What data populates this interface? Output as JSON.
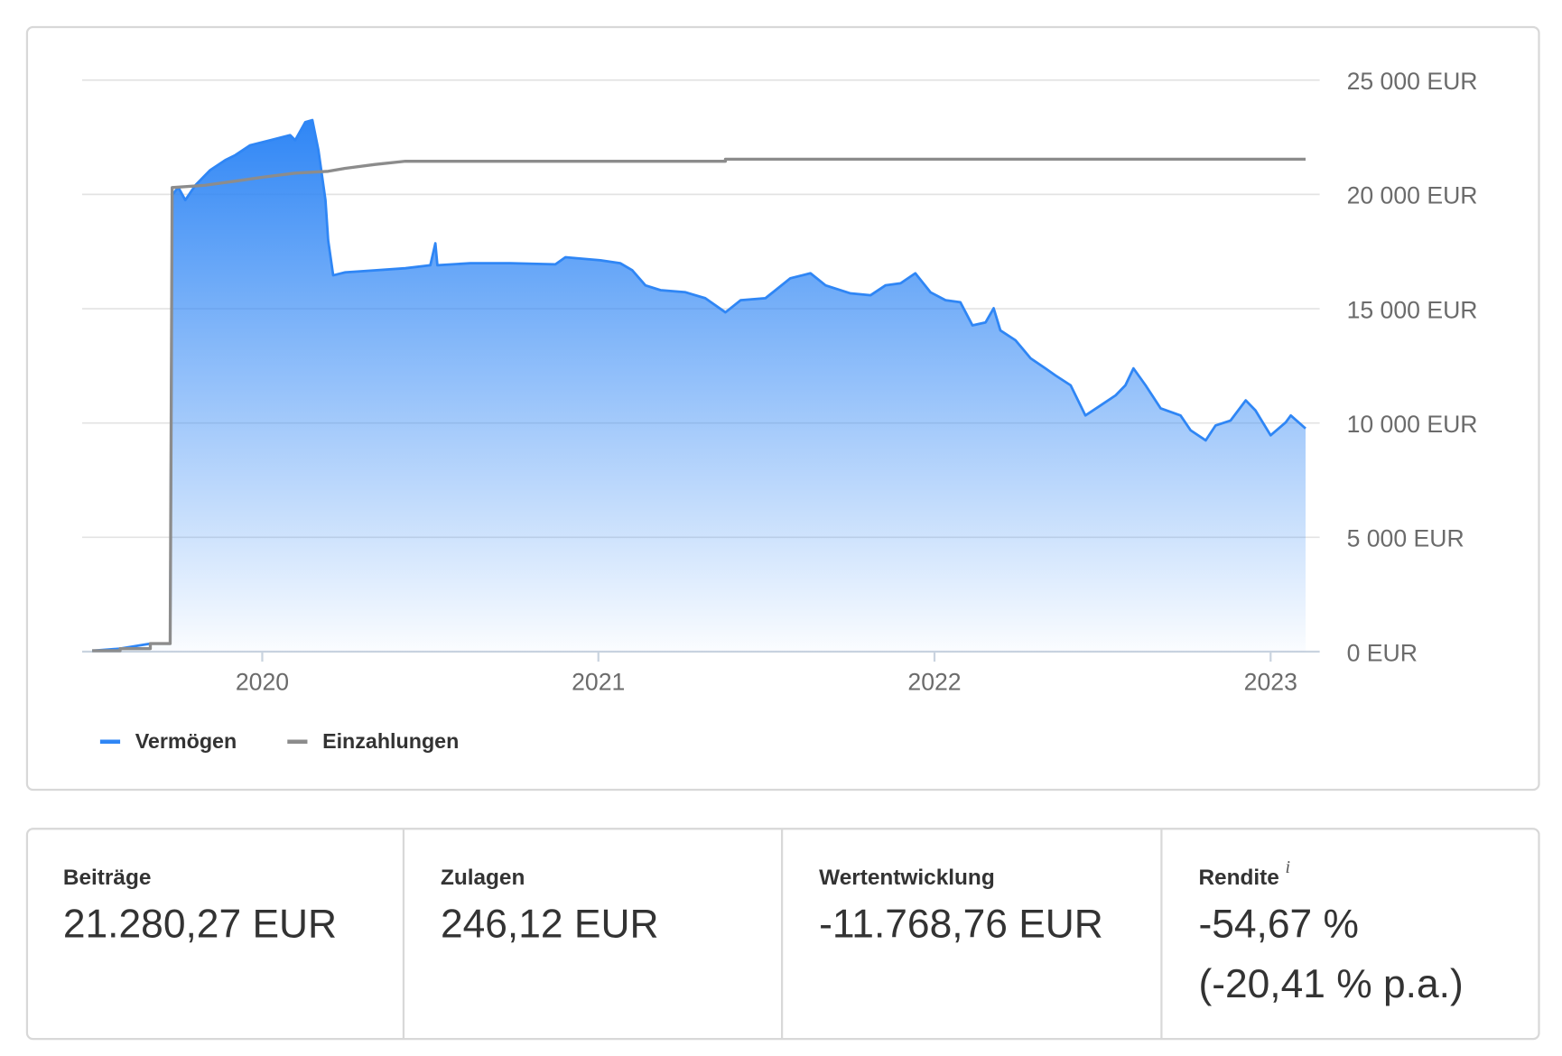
{
  "chart_data": {
    "type": "area-line",
    "xlim": [
      2019.464,
      2023.146
    ],
    "xticks": [
      2020,
      2021,
      2022,
      2023
    ],
    "ylim": [
      0,
      25000
    ],
    "yticks": [
      {
        "value": 0,
        "label": "0 EUR"
      },
      {
        "value": 5000,
        "label": "5 000 EUR"
      },
      {
        "value": 10000,
        "label": "10 000 EUR"
      },
      {
        "value": 15000,
        "label": "15 000 EUR"
      },
      {
        "value": 20000,
        "label": "20 000 EUR"
      },
      {
        "value": 25000,
        "label": "25 000 EUR"
      }
    ],
    "grid": true,
    "legend": "bottom-left",
    "series": [
      {
        "name": "Vermögen",
        "color": "#2f86f5",
        "fill": "gradient",
        "x": [
          2019.494,
          2019.577,
          2019.667,
          2019.726,
          2019.732,
          2019.75,
          2019.771,
          2019.801,
          2019.845,
          2019.89,
          2019.92,
          2019.964,
          2020.024,
          2020.083,
          2020.098,
          2020.128,
          2020.149,
          2020.167,
          2020.188,
          2020.196,
          2020.211,
          2020.247,
          2020.336,
          2020.426,
          2020.5,
          2020.515,
          2020.521,
          2020.619,
          2020.738,
          2020.872,
          2020.902,
          2020.932,
          2021.006,
          2021.065,
          2021.101,
          2021.14,
          2021.185,
          2021.259,
          2021.318,
          2021.378,
          2021.423,
          2021.497,
          2021.527,
          2021.571,
          2021.631,
          2021.676,
          2021.75,
          2021.81,
          2021.854,
          2021.899,
          2021.943,
          2021.988,
          2022.033,
          2022.077,
          2022.113,
          2022.152,
          2022.176,
          2022.196,
          2022.241,
          2022.286,
          2022.33,
          2022.36,
          2022.405,
          2022.449,
          2022.494,
          2022.539,
          2022.568,
          2022.592,
          2022.628,
          2022.673,
          2022.732,
          2022.762,
          2022.807,
          2022.836,
          2022.881,
          2022.926,
          2022.955,
          2023.0,
          2023.045,
          2023.06,
          2023.104
        ],
        "values": [
          40,
          130,
          350,
          350,
          19965,
          20315,
          19750,
          20400,
          21060,
          21500,
          21720,
          22150,
          22370,
          22590,
          22370,
          23160,
          23250,
          21940,
          19750,
          18000,
          16460,
          16590,
          16680,
          16770,
          16900,
          17860,
          16900,
          16990,
          16990,
          16940,
          17250,
          17210,
          17120,
          16990,
          16680,
          16020,
          15810,
          15720,
          15460,
          14840,
          15370,
          15460,
          15810,
          16330,
          16550,
          16020,
          15670,
          15590,
          16020,
          16110,
          16550,
          15720,
          15370,
          15280,
          14270,
          14400,
          15020,
          14050,
          13620,
          12830,
          12390,
          12080,
          11650,
          10330,
          10770,
          11210,
          11650,
          12390,
          11650,
          10640,
          10330,
          9680,
          9240,
          9890,
          10110,
          10990,
          10550,
          9460,
          10030,
          10330,
          9760
        ]
      },
      {
        "name": "Einzahlungen",
        "color": "#8c8c8c",
        "x": [
          2019.494,
          2019.577,
          2019.577,
          2019.667,
          2019.667,
          2019.726,
          2019.732,
          2019.83,
          2019.92,
          2020.0,
          2020.098,
          2020.196,
          2020.247,
          2020.336,
          2020.426,
          2021.378,
          2021.378,
          2023.104
        ],
        "values": [
          40,
          40,
          130,
          130,
          350,
          350,
          20300,
          20400,
          20580,
          20750,
          20930,
          21010,
          21140,
          21310,
          21450,
          21450,
          21540,
          21540
        ]
      }
    ]
  },
  "stats": [
    {
      "label": "Beiträge",
      "value": "21.280,27 EUR"
    },
    {
      "label": "Zulagen",
      "value": "246,12 EUR"
    },
    {
      "label": "Wertentwicklung",
      "value": "-11.768,76 EUR"
    },
    {
      "label": "Rendite",
      "info": "i",
      "value": "-54,67 %",
      "note": "(-20,41 % p.a.)"
    }
  ]
}
